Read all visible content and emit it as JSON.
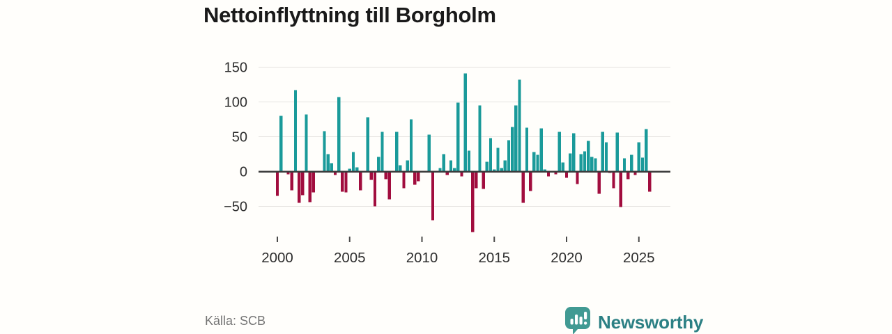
{
  "title": "Nettoinflyttning till Borgholm",
  "source": "Källa: SCB",
  "branding": {
    "name": "Newsworthy",
    "icon": "newsworthy-speech-bubble-barchart-icon"
  },
  "colors": {
    "background": "#fffefb",
    "positive_bar": "#1a9a9a",
    "negative_bar": "#a10d3e",
    "gridline": "#e4e2df",
    "zero_line": "#3b3b3b",
    "axis_text": "#2e2e2e",
    "title_text": "#1a1a1a",
    "source_text": "#757575",
    "brand_teal": "#2c8084",
    "brand_icon_teal": "#419a93"
  },
  "chart_data": {
    "type": "bar",
    "title": "Nettoinflyttning till Borgholm",
    "xlabel": "",
    "ylabel": "",
    "periodicity": "quarterly",
    "x_start": "2000-Q1",
    "x_end": "2025-Q4",
    "x_tick_labels": [
      "2000",
      "2005",
      "2010",
      "2015",
      "2020",
      "2025"
    ],
    "x_tick_every_n_bars": 20,
    "y_tick_values": [
      150,
      100,
      50,
      0,
      -50
    ],
    "y_tick_labels": [
      "150",
      "100",
      "50",
      "0",
      "−50"
    ],
    "ylim": [
      -98,
      160
    ],
    "grid": "horizontal",
    "legend": "none",
    "values": [
      -35,
      80,
      0,
      -4,
      -27,
      117,
      -45,
      -34,
      82,
      -44,
      -30,
      0,
      0,
      58,
      25,
      12,
      -5,
      107,
      -29,
      -30,
      4,
      28,
      6,
      -27,
      0,
      78,
      -12,
      -50,
      21,
      57,
      -11,
      -40,
      0,
      57,
      9,
      -24,
      16,
      75,
      -19,
      -14,
      0,
      0,
      53,
      -70,
      0,
      5,
      25,
      -5,
      16,
      5,
      99,
      -7,
      141,
      30,
      -87,
      -24,
      95,
      -25,
      14,
      48,
      3,
      34,
      5,
      16,
      45,
      64,
      95,
      132,
      -45,
      63,
      -28,
      28,
      24,
      62,
      3,
      -7,
      0,
      -4,
      57,
      13,
      -9,
      26,
      55,
      -18,
      25,
      29,
      44,
      21,
      19,
      -32,
      57,
      42,
      -2,
      -24,
      56,
      -51,
      19,
      -11,
      24,
      -5,
      42,
      20,
      61,
      -29
    ]
  }
}
